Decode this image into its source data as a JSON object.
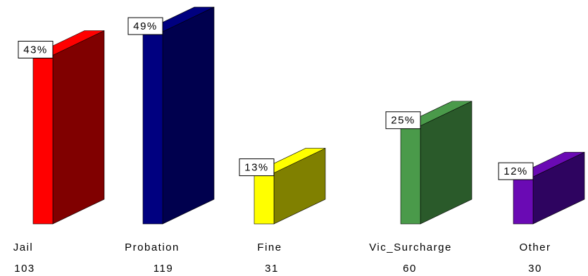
{
  "chart_data": {
    "type": "bar3d",
    "categories": [
      "Jail",
      "Probation",
      "Fine",
      "Vic_Surcharge",
      "Other"
    ],
    "values": [
      43,
      49,
      13,
      25,
      12
    ],
    "value_labels": [
      "43%",
      "49%",
      "13%",
      "25%",
      "12%"
    ],
    "counts": [
      103,
      119,
      31,
      60,
      30
    ],
    "colors": [
      "#ff0000",
      "#000080",
      "#ffff00",
      "#4a9a4a",
      "#6a0ab4"
    ],
    "side_colors": [
      "#800000",
      "#00004e",
      "#808000",
      "#2a5a2a",
      "#2e0460"
    ]
  }
}
